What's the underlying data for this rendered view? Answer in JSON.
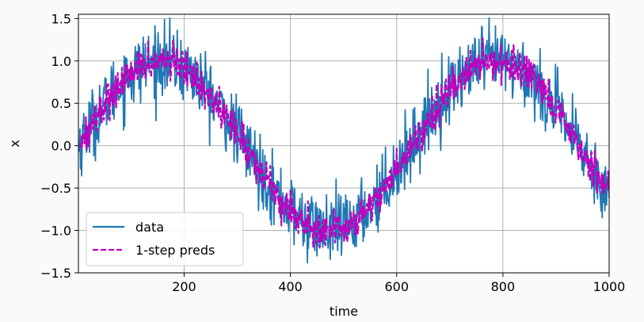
{
  "chart_data": {
    "type": "line",
    "title": "",
    "xlabel": "time",
    "ylabel": "x",
    "xlim": [
      1,
      1000
    ],
    "ylim": [
      -1.5,
      1.55
    ],
    "xticks": [
      200,
      400,
      600,
      800,
      1000
    ],
    "yticks": [
      -1.5,
      -1.0,
      -0.5,
      0.0,
      0.5,
      1.0,
      1.5
    ],
    "xtick_labels": [
      "200",
      "400",
      "600",
      "800",
      "1000"
    ],
    "ytick_labels": [
      "−1.5",
      "−1.0",
      "−0.5",
      "0.0",
      "0.5",
      "1.0",
      "1.5"
    ],
    "grid": true,
    "legend_position": "lower-left",
    "series": [
      {
        "name": "data",
        "color": "#1f77b4",
        "style": "solid",
        "x_start": 1,
        "x_end": 1000,
        "signal": "sin(0.01*time)",
        "noise_std": 0.2
      },
      {
        "name": "1-step preds",
        "color": "#bf00bf",
        "style": "dashed",
        "x_start": 5,
        "x_end": 1000,
        "signal": "sin(0.01*time)",
        "noise_std": 0.1
      }
    ]
  }
}
